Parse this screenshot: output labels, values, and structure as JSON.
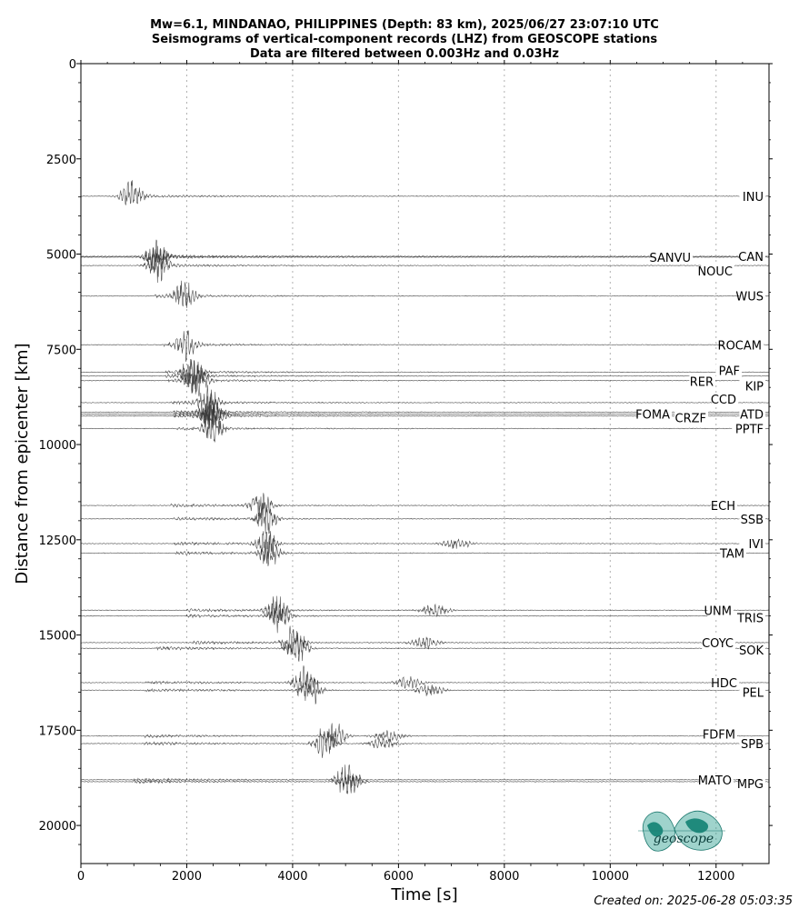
{
  "chart_data": {
    "type": "line",
    "title_lines": [
      "Mw=6.1, MINDANAO, PHILIPPINES (Depth: 83 km), 2025/06/27 23:07:10 UTC",
      "Seismograms of vertical-component records (LHZ) from GEOSCOPE stations",
      "Data are filtered between 0.003Hz and 0.03Hz"
    ],
    "xlabel": "Time [s]",
    "ylabel": "Distance from epicenter [km]",
    "xlim": [
      0,
      13000
    ],
    "ylim": [
      21000,
      0
    ],
    "x_ticks": [
      0,
      2000,
      4000,
      6000,
      8000,
      10000,
      12000
    ],
    "y_ticks": [
      0,
      2500,
      5000,
      7500,
      10000,
      12500,
      15000,
      17500,
      20000
    ],
    "grid": "vertical dotted",
    "series": [
      {
        "name": "INU",
        "distance": 3480,
        "onset": 900,
        "peak": 950,
        "surface": null
      },
      {
        "name": "CAN",
        "distance": 5060,
        "onset": 1300,
        "peak": 1400,
        "surface": null
      },
      {
        "name": "SANVU",
        "distance": 5080,
        "onset": 1300,
        "peak": 1450,
        "surface": null
      },
      {
        "name": "NOUC",
        "distance": 5300,
        "onset": 1350,
        "peak": 1450,
        "surface": null
      },
      {
        "name": "WUS",
        "distance": 6100,
        "onset": 1400,
        "peak": 1950,
        "surface": null
      },
      {
        "name": "ROCAM",
        "distance": 7380,
        "onset": 1550,
        "peak": 1980,
        "surface": null
      },
      {
        "name": "PAF",
        "distance": 8100,
        "onset": 1600,
        "peak": 2100,
        "surface": null
      },
      {
        "name": "RER",
        "distance": 8200,
        "onset": 1600,
        "peak": 2150,
        "surface": null
      },
      {
        "name": "KIP",
        "distance": 8320,
        "onset": 1650,
        "peak": 2200,
        "surface": null
      },
      {
        "name": "CCD",
        "distance": 8900,
        "onset": 1700,
        "peak": 2400,
        "surface": null
      },
      {
        "name": "ATD",
        "distance": 9150,
        "onset": 1750,
        "peak": 2450,
        "surface": null
      },
      {
        "name": "FOMA",
        "distance": 9200,
        "onset": 1750,
        "peak": 2450,
        "surface": null
      },
      {
        "name": "CRZF",
        "distance": 9250,
        "onset": 1750,
        "peak": 2480,
        "surface": null
      },
      {
        "name": "PPTF",
        "distance": 9580,
        "onset": 1800,
        "peak": 2500,
        "surface": null
      },
      {
        "name": "ECH",
        "distance": 11600,
        "onset": 1700,
        "peak": 3400,
        "surface": null
      },
      {
        "name": "SSB",
        "distance": 11950,
        "onset": 1750,
        "peak": 3500,
        "surface": null
      },
      {
        "name": "IVI",
        "distance": 12600,
        "onset": 1750,
        "peak": 3500,
        "surface": 7100
      },
      {
        "name": "TAM",
        "distance": 12850,
        "onset": 1800,
        "peak": 3550,
        "surface": null
      },
      {
        "name": "UNM",
        "distance": 14350,
        "onset": 2000,
        "peak": 3700,
        "surface": 6700
      },
      {
        "name": "TRIS",
        "distance": 14500,
        "onset": 2000,
        "peak": 3750,
        "surface": null
      },
      {
        "name": "COYC",
        "distance": 15200,
        "onset": 2100,
        "peak": 4000,
        "surface": 6500
      },
      {
        "name": "SOK",
        "distance": 15350,
        "onset": 1400,
        "peak": 4100,
        "surface": null
      },
      {
        "name": "HDC",
        "distance": 16250,
        "onset": 1200,
        "peak": 4200,
        "surface": 6200
      },
      {
        "name": "PEL",
        "distance": 16450,
        "onset": 1200,
        "peak": 4350,
        "surface": 6600
      },
      {
        "name": "FDFM",
        "distance": 17650,
        "onset": 1200,
        "peak": 4800,
        "surface": 5800
      },
      {
        "name": "SPB",
        "distance": 17850,
        "onset": 1200,
        "peak": 4600,
        "surface": 5700
      },
      {
        "name": "MATO",
        "distance": 18800,
        "onset": 1000,
        "peak": 5000,
        "surface": null
      },
      {
        "name": "MPG",
        "distance": 18850,
        "onset": 1000,
        "peak": 5100,
        "surface": null
      }
    ]
  },
  "footer": {
    "created": "Created on: 2025-06-28 05:03:35"
  },
  "logo": {
    "text": "geoscope",
    "color": "#2a9d8f"
  }
}
